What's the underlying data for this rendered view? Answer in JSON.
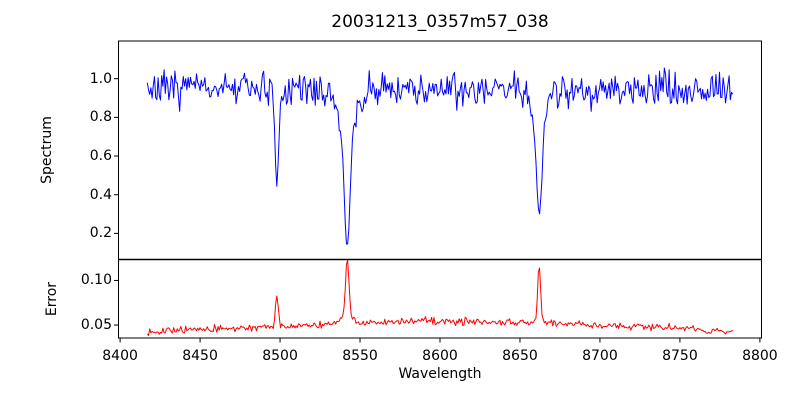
{
  "figure": {
    "background": "#ffffff",
    "axis_color": "#000000"
  },
  "chart_data": {
    "type": "line",
    "title": "20031213_0357m57_038",
    "xlabel": "Wavelength",
    "grid": false,
    "legend": null,
    "xlim": [
      8399,
      8801
    ],
    "x_ticks": [
      8400,
      8450,
      8500,
      8550,
      8600,
      8650,
      8700,
      8750,
      8800
    ],
    "x_tick_labels": [
      "8400",
      "8450",
      "8500",
      "8550",
      "8600",
      "8650",
      "8700",
      "8750",
      "8800"
    ],
    "panels": [
      {
        "name": "spectrum",
        "ylabel": "Spectrum",
        "ylim": [
          0.065,
          1.195
        ],
        "y_ticks": [
          0.2,
          0.4,
          0.6,
          0.8,
          1.0
        ],
        "y_tick_labels": [
          "0.2",
          "0.4",
          "0.6",
          "0.8",
          "1.0"
        ],
        "series": {
          "name": "spectrum-flux",
          "color": "#0000ff",
          "x_start": 8417,
          "x_end": 8783,
          "step": 0.75,
          "seed": 7,
          "noise_sigma": 0.042,
          "noise_scales_with_value": true,
          "spike_prob": 0.04,
          "spike_mult": 1.8,
          "baseline_anchors": [
            [
              8417,
              0.945
            ],
            [
              8460,
              0.955
            ],
            [
              8500,
              0.95
            ],
            [
              8540,
              0.945
            ],
            [
              8580,
              0.945
            ],
            [
              8620,
              0.95
            ],
            [
              8660,
              0.955
            ],
            [
              8700,
              0.945
            ],
            [
              8740,
              0.94
            ],
            [
              8783,
              0.95
            ]
          ],
          "features": [
            {
              "center": 8498,
              "sign": -1,
              "components": [
                {
                  "amplitude": 0.46,
                  "sigma": 1.1
                },
                {
                  "amplitude": 0.05,
                  "sigma": 3.5
                }
              ]
            },
            {
              "center": 8542,
              "sign": -1,
              "components": [
                {
                  "amplitude": 0.6,
                  "sigma": 1.8
                },
                {
                  "amplitude": 0.21,
                  "sigma": 6.0
                }
              ]
            },
            {
              "center": 8662,
              "sign": -1,
              "components": [
                {
                  "amplitude": 0.48,
                  "sigma": 1.6
                },
                {
                  "amplitude": 0.17,
                  "sigma": 5.0
                }
              ]
            }
          ]
        }
      },
      {
        "name": "error",
        "ylabel": "Error",
        "ylim": [
          0.0355,
          0.1235
        ],
        "y_ticks": [
          0.05,
          0.1
        ],
        "y_tick_labels": [
          "0.05",
          "0.10"
        ],
        "series": {
          "name": "error-level",
          "color": "#ff0000",
          "x_start": 8417,
          "x_end": 8783,
          "step": 0.75,
          "seed": 13,
          "noise_sigma": 0.0018,
          "noise_scales_with_value": false,
          "spike_prob": 0,
          "spike_mult": 1,
          "baseline_anchors": [
            [
              8417,
              0.043
            ],
            [
              8450,
              0.045
            ],
            [
              8480,
              0.047
            ],
            [
              8520,
              0.05
            ],
            [
              8555,
              0.052
            ],
            [
              8585,
              0.055
            ],
            [
              8615,
              0.054
            ],
            [
              8660,
              0.053
            ],
            [
              8700,
              0.05
            ],
            [
              8745,
              0.047
            ],
            [
              8783,
              0.042
            ]
          ],
          "features": [
            {
              "center": 8498,
              "sign": 1,
              "components": [
                {
                  "amplitude": 0.034,
                  "sigma": 0.9
                }
              ]
            },
            {
              "center": 8542,
              "sign": 1,
              "components": [
                {
                  "amplitude": 0.062,
                  "sigma": 1.1
                },
                {
                  "amplitude": 0.008,
                  "sigma": 4.0
                }
              ]
            },
            {
              "center": 8662,
              "sign": 1,
              "components": [
                {
                  "amplitude": 0.065,
                  "sigma": 0.9
                }
              ]
            }
          ]
        }
      }
    ]
  }
}
